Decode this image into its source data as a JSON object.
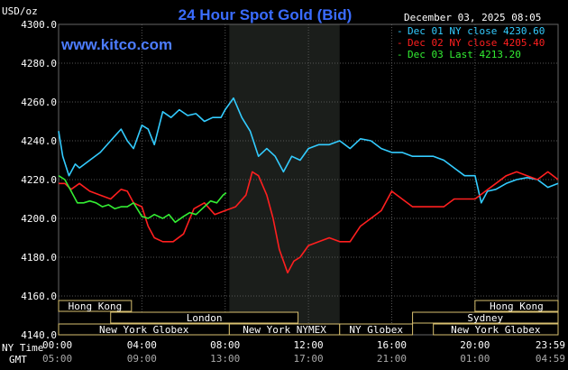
{
  "header": {
    "title": "24 Hour Spot Gold (Bid)",
    "unit": "USD/oz",
    "website": "www.kitco.com",
    "date": "December 03, 2025 08:05"
  },
  "legend": [
    {
      "text": "Dec 01 NY close 4230.60",
      "color": "#33ccff"
    },
    {
      "text": "Dec 02 NY close 4205.40",
      "color": "#ff1f1f"
    },
    {
      "text": "Dec 03 Last 4213.20",
      "color": "#33ee33"
    }
  ],
  "y_ticks": [
    "4300.0",
    "4280.0",
    "4260.0",
    "4240.0",
    "4220.0",
    "4200.0",
    "4180.0",
    "4160.0",
    "4140.0"
  ],
  "x_ticks_ny": [
    "00:00",
    "04:00",
    "08:00",
    "12:00",
    "16:00",
    "20:00",
    "23:59"
  ],
  "x_ticks_gmt": [
    "05:00",
    "09:00",
    "13:00",
    "17:00",
    "21:00",
    "01:00",
    "04:59"
  ],
  "row_labels": {
    "ny": "NY Time",
    "gmt": "GMT"
  },
  "sessions": [
    {
      "label": "Hong Kong",
      "start": 0,
      "end": 3.5,
      "row": 0
    },
    {
      "label": "Hong Kong",
      "start": 20,
      "end": 23.99,
      "row": 0
    },
    {
      "label": "London",
      "start": 2.5,
      "end": 11.5,
      "row": 1
    },
    {
      "label": "Sydney",
      "start": 17,
      "end": 23.99,
      "row": 1
    },
    {
      "label": "New York Globex",
      "start": 0,
      "end": 8.2,
      "row": 2
    },
    {
      "label": "New York NYMEX",
      "start": 8.2,
      "end": 13.5,
      "row": 2
    },
    {
      "label": "NY Globex",
      "start": 13.5,
      "end": 17,
      "row": 2
    },
    {
      "label": "New York Globex",
      "start": 18,
      "end": 23.99,
      "row": 2
    }
  ],
  "colors": {
    "background": "#000000",
    "grid": "#555555",
    "shaded_period": "#1b1e1b",
    "axis_text": "#ffffff",
    "title": "#3a6cff",
    "website": "#4d7dff",
    "session_box_fill": "#000000",
    "session_box_border": "#d8c070",
    "session_text": "#ffffff"
  },
  "chart_data": {
    "type": "line",
    "title": "24 Hour Spot Gold (Bid)",
    "xlabel": "",
    "ylabel": "USD/oz",
    "xlim": [
      0,
      23.99
    ],
    "ylim": [
      4140,
      4300
    ],
    "grid": true,
    "legend_position": "top-right",
    "shaded_period": [
      8.2,
      13.5
    ],
    "series": [
      {
        "name": "Dec 01 NY close 4230.60",
        "color": "#33ccff",
        "x": [
          0,
          0.2,
          0.5,
          0.8,
          1.0,
          1.5,
          2.0,
          2.5,
          3.0,
          3.3,
          3.6,
          4.0,
          4.3,
          4.6,
          5.0,
          5.4,
          5.8,
          6.2,
          6.6,
          7.0,
          7.4,
          7.8,
          8.0,
          8.4,
          8.8,
          9.2,
          9.6,
          10.0,
          10.4,
          10.8,
          11.2,
          11.6,
          12.0,
          12.5,
          13.0,
          13.5,
          14.0,
          14.5,
          15.0,
          15.5,
          16.0,
          16.5,
          17.0,
          17.5,
          18.0,
          18.5,
          19.0,
          19.5,
          20.0,
          20.3,
          20.6,
          21.0,
          21.5,
          22.0,
          22.5,
          23.0,
          23.5,
          23.99
        ],
        "y": [
          4245,
          4232,
          4222,
          4228,
          4226,
          4230,
          4234,
          4240,
          4246,
          4240,
          4236,
          4248,
          4246,
          4238,
          4255,
          4252,
          4256,
          4253,
          4254,
          4250,
          4252,
          4252,
          4256,
          4262,
          4252,
          4245,
          4232,
          4236,
          4232,
          4224,
          4232,
          4230,
          4236,
          4238,
          4238,
          4240,
          4236,
          4241,
          4240,
          4236,
          4234,
          4234,
          4232,
          4232,
          4232,
          4230,
          4226,
          4222,
          4222,
          4208,
          4214,
          4215,
          4218,
          4220,
          4221,
          4220,
          4216,
          4218
        ]
      },
      {
        "name": "Dec 02 NY close 4205.40",
        "color": "#ff1f1f",
        "x": [
          0,
          0.3,
          0.6,
          1.0,
          1.5,
          2.0,
          2.5,
          3.0,
          3.3,
          3.6,
          4.0,
          4.3,
          4.6,
          5.0,
          5.5,
          6.0,
          6.5,
          7.0,
          7.5,
          8.0,
          8.5,
          9.0,
          9.3,
          9.6,
          10.0,
          10.3,
          10.6,
          11.0,
          11.3,
          11.6,
          12.0,
          12.5,
          13.0,
          13.5,
          14.0,
          14.5,
          15.0,
          15.5,
          16.0,
          16.5,
          17.0,
          17.5,
          18.0,
          18.5,
          19.0,
          19.5,
          20.0,
          20.5,
          21.0,
          21.5,
          22.0,
          22.5,
          23.0,
          23.5,
          23.99
        ],
        "y": [
          4218,
          4218,
          4215,
          4218,
          4214,
          4212,
          4210,
          4215,
          4214,
          4208,
          4206,
          4196,
          4190,
          4188,
          4188,
          4192,
          4205,
          4208,
          4202,
          4204,
          4206,
          4212,
          4224,
          4222,
          4212,
          4200,
          4184,
          4172,
          4178,
          4180,
          4186,
          4188,
          4190,
          4188,
          4188,
          4196,
          4200,
          4204,
          4214,
          4210,
          4206,
          4206,
          4206,
          4206,
          4210,
          4210,
          4210,
          4214,
          4218,
          4222,
          4224,
          4222,
          4220,
          4224,
          4220
        ]
      },
      {
        "name": "Dec 03 Last 4213.20",
        "color": "#33ee33",
        "x": [
          0,
          0.3,
          0.6,
          0.9,
          1.2,
          1.5,
          1.8,
          2.1,
          2.4,
          2.7,
          3.0,
          3.3,
          3.6,
          4.0,
          4.3,
          4.6,
          5.0,
          5.3,
          5.6,
          6.0,
          6.3,
          6.6,
          7.0,
          7.3,
          7.6,
          7.9,
          8.05
        ],
        "y": [
          4222,
          4220,
          4214,
          4208,
          4208,
          4209,
          4208,
          4206,
          4207,
          4205,
          4206,
          4206,
          4208,
          4201,
          4200,
          4202,
          4200,
          4202,
          4198,
          4201,
          4203,
          4202,
          4206,
          4209,
          4208,
          4212,
          4213.2
        ]
      }
    ]
  }
}
